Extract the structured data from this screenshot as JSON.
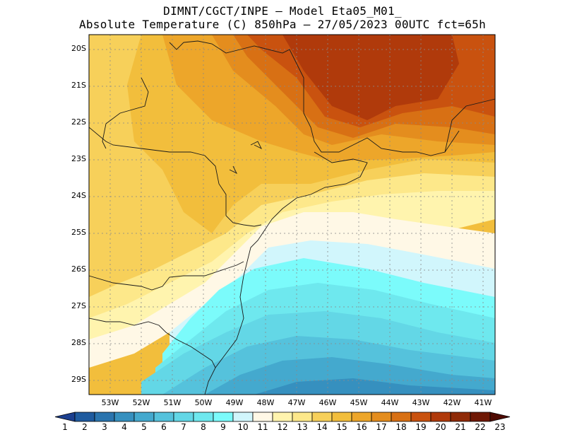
{
  "title_line1": "DIMNT/CGCT/INPE –  Model Eta05_M01_",
  "title_line2": "Absolute Temperature (C) 850hPa –  27/05/2023 00UTC fct=65h",
  "lat_labels": [
    "20S",
    "21S",
    "22S",
    "23S",
    "24S",
    "25S",
    "26S",
    "27S",
    "28S",
    "29S"
  ],
  "lon_labels": [
    "53W",
    "52W",
    "51W",
    "50W",
    "49W",
    "48W",
    "47W",
    "46W",
    "45W",
    "44W",
    "43W",
    "42W",
    "41W"
  ],
  "colorbar": {
    "labels": [
      "1",
      "2",
      "3",
      "4",
      "5",
      "6",
      "7",
      "8",
      "9",
      "10",
      "11",
      "12",
      "13",
      "14",
      "15",
      "16",
      "17",
      "18",
      "19",
      "20",
      "21",
      "22",
      "23"
    ],
    "colors": [
      "#1c3f8f",
      "#1f5b9f",
      "#2a74ae",
      "#3690bf",
      "#44a9ce",
      "#55c2dc",
      "#63d7e6",
      "#6ee8ee",
      "#7bfbfb",
      "#d1f6fc",
      "#fff8e6",
      "#fff4ae",
      "#fde88a",
      "#f7d05a",
      "#f2be3c",
      "#eda62a",
      "#e48d1e",
      "#d87014",
      "#c9520f",
      "#b03a0b",
      "#8f2a07",
      "#6f1804",
      "#4f0a02"
    ]
  },
  "chart_data": {
    "type": "heatmap",
    "title": "Absolute Temperature (C) 850hPa",
    "variable": "Absolute Temperature (C)",
    "level": "850hPa",
    "date": "27/05/2023 00UTC",
    "forecast": "fct=65h",
    "x_range": [
      -53.5,
      -40.5
    ],
    "y_range": [
      -29.4,
      -19.8
    ],
    "x_ticks": [
      "53W",
      "52W",
      "51W",
      "50W",
      "49W",
      "48W",
      "47W",
      "46W",
      "45W",
      "44W",
      "43W",
      "42W",
      "41W"
    ],
    "y_ticks": [
      "20S",
      "21S",
      "22S",
      "23S",
      "24S",
      "25S",
      "26S",
      "27S",
      "28S",
      "29S"
    ],
    "contour_levels": [
      1,
      2,
      3,
      4,
      5,
      6,
      7,
      8,
      9,
      10,
      11,
      12,
      13,
      14,
      15,
      16,
      17,
      18,
      19,
      20,
      21,
      22,
      23
    ]
  }
}
